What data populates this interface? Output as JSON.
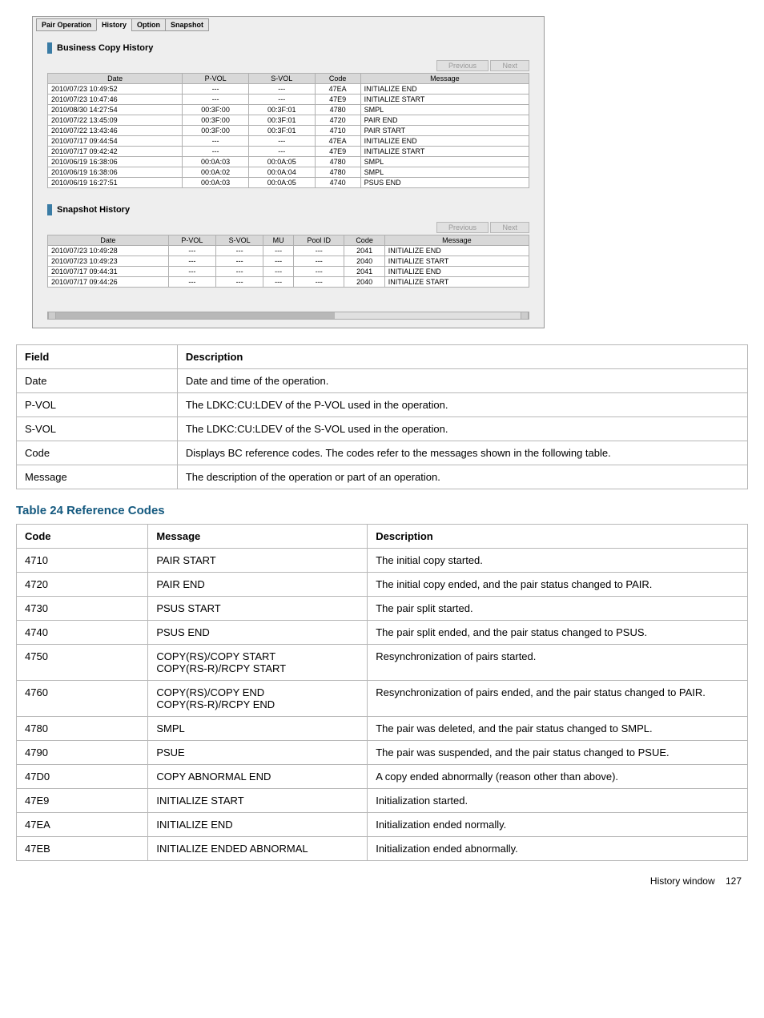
{
  "tabs": {
    "items": [
      "Pair Operation",
      "History",
      "Option",
      "Snapshot"
    ],
    "active_index": 1
  },
  "bc_history": {
    "title": "Business Copy History",
    "buttons": {
      "prev": "Previous",
      "next": "Next"
    },
    "columns": [
      "Date",
      "P-VOL",
      "S-VOL",
      "Code",
      "Message"
    ],
    "rows": [
      {
        "date": "2010/07/23 10:49:52",
        "pvol": "---",
        "svol": "---",
        "code": "47EA",
        "msg": "INITIALIZE END"
      },
      {
        "date": "2010/07/23 10:47:46",
        "pvol": "---",
        "svol": "---",
        "code": "47E9",
        "msg": "INITIALIZE START"
      },
      {
        "date": "2010/08/30 14:27:54",
        "pvol": "00:3F:00",
        "svol": "00:3F:01",
        "code": "4780",
        "msg": "SMPL"
      },
      {
        "date": "2010/07/22 13:45:09",
        "pvol": "00:3F:00",
        "svol": "00:3F:01",
        "code": "4720",
        "msg": "PAIR END"
      },
      {
        "date": "2010/07/22 13:43:46",
        "pvol": "00:3F:00",
        "svol": "00:3F:01",
        "code": "4710",
        "msg": "PAIR START"
      },
      {
        "date": "2010/07/17 09:44:54",
        "pvol": "---",
        "svol": "---",
        "code": "47EA",
        "msg": "INITIALIZE END"
      },
      {
        "date": "2010/07/17 09:42:42",
        "pvol": "---",
        "svol": "---",
        "code": "47E9",
        "msg": "INITIALIZE START"
      },
      {
        "date": "2010/06/19 16:38:06",
        "pvol": "00:0A:03",
        "svol": "00:0A:05",
        "code": "4780",
        "msg": "SMPL"
      },
      {
        "date": "2010/06/19 16:38:06",
        "pvol": "00:0A:02",
        "svol": "00:0A:04",
        "code": "4780",
        "msg": "SMPL"
      },
      {
        "date": "2010/06/19 16:27:51",
        "pvol": "00:0A:03",
        "svol": "00:0A:05",
        "code": "4740",
        "msg": "PSUS END"
      }
    ]
  },
  "snap_history": {
    "title": "Snapshot History",
    "buttons": {
      "prev": "Previous",
      "next": "Next"
    },
    "columns": [
      "Date",
      "P-VOL",
      "S-VOL",
      "MU",
      "Pool ID",
      "Code",
      "Message"
    ],
    "rows": [
      {
        "date": "2010/07/23 10:49:28",
        "pvol": "---",
        "svol": "---",
        "mu": "---",
        "pool": "---",
        "code": "2041",
        "msg": "INITIALIZE END"
      },
      {
        "date": "2010/07/23 10:49:23",
        "pvol": "---",
        "svol": "---",
        "mu": "---",
        "pool": "---",
        "code": "2040",
        "msg": "INITIALIZE START"
      },
      {
        "date": "2010/07/17 09:44:31",
        "pvol": "---",
        "svol": "---",
        "mu": "---",
        "pool": "---",
        "code": "2041",
        "msg": "INITIALIZE END"
      },
      {
        "date": "2010/07/17 09:44:26",
        "pvol": "---",
        "svol": "---",
        "mu": "---",
        "pool": "---",
        "code": "2040",
        "msg": "INITIALIZE START"
      }
    ]
  },
  "field_table": {
    "header": {
      "field": "Field",
      "desc": "Description"
    },
    "rows": [
      {
        "field": "Date",
        "desc": "Date and time of the operation."
      },
      {
        "field": "P-VOL",
        "desc": "The LDKC:CU:LDEV of the P-VOL used in the operation."
      },
      {
        "field": "S-VOL",
        "desc": "The LDKC:CU:LDEV of the S-VOL used in the operation."
      },
      {
        "field": "Code",
        "desc": "Displays BC reference codes. The codes refer to the messages shown in the following table."
      },
      {
        "field": "Message",
        "desc": "The description of the operation or part of an operation."
      }
    ]
  },
  "ref_table": {
    "caption": "Table 24 Reference Codes",
    "header": {
      "code": "Code",
      "msg": "Message",
      "desc": "Description"
    },
    "rows": [
      {
        "code": "4710",
        "msg": "PAIR START",
        "desc": "The initial copy started."
      },
      {
        "code": "4720",
        "msg": "PAIR END",
        "desc": "The initial copy ended, and the pair status changed to PAIR."
      },
      {
        "code": "4730",
        "msg": "PSUS START",
        "desc": "The pair split started."
      },
      {
        "code": "4740",
        "msg": "PSUS END",
        "desc": "The pair split ended, and the pair status changed to PSUS."
      },
      {
        "code": "4750",
        "msg": "COPY(RS)/COPY START\nCOPY(RS-R)/RCPY START",
        "desc": "Resynchronization of pairs started."
      },
      {
        "code": "4760",
        "msg": "COPY(RS)/COPY END\nCOPY(RS-R)/RCPY END",
        "desc": "Resynchronization of pairs ended, and the pair status changed to PAIR."
      },
      {
        "code": "4780",
        "msg": "SMPL",
        "desc": "The pair was deleted, and the pair status changed to SMPL."
      },
      {
        "code": "4790",
        "msg": "PSUE",
        "desc": "The pair was suspended, and the pair status changed to PSUE."
      },
      {
        "code": "47D0",
        "msg": "COPY ABNORMAL END",
        "desc": "A copy ended abnormally (reason other than above)."
      },
      {
        "code": "47E9",
        "msg": "INITIALIZE START",
        "desc": "Initialization started."
      },
      {
        "code": "47EA",
        "msg": "INITIALIZE END",
        "desc": "Initialization ended normally."
      },
      {
        "code": "47EB",
        "msg": "INITIALIZE ENDED ABNORMAL",
        "desc": "Initialization ended abnormally."
      }
    ]
  },
  "footer": {
    "label": "History window",
    "page": "127"
  }
}
